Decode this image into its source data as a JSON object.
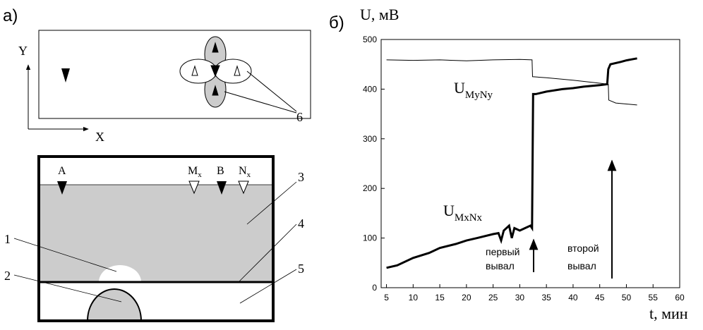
{
  "panel_a": {
    "label": "а)",
    "axis_y": "Y",
    "axis_x": "X",
    "marker_6": "6",
    "electrodes": {
      "a": "A",
      "m": "M",
      "m_sub": "x",
      "b": "B",
      "n": "N",
      "n_sub": "x"
    },
    "layers": [
      "1",
      "2",
      "3",
      "4",
      "5"
    ]
  },
  "chart_data": {
    "type": "line",
    "panel_label": "б)",
    "y_label": "U, мВ",
    "x_label": "t, мин",
    "xlim": [
      4,
      60
    ],
    "xticks": [
      5,
      10,
      15,
      20,
      25,
      30,
      35,
      40,
      45,
      50,
      55,
      60
    ],
    "ylim": [
      0,
      500
    ],
    "yticks": [
      0,
      100,
      200,
      300,
      400,
      500
    ],
    "series": [
      {
        "name": "U",
        "name_sub": "MyNy",
        "color": "#000",
        "x": [
          5,
          10,
          15,
          20,
          25,
          30,
          32.3,
          32.4,
          35,
          40,
          45,
          46.6,
          46.7,
          48,
          50,
          52
        ],
        "values": [
          459,
          458,
          459,
          457,
          459,
          460,
          459,
          425,
          423,
          418,
          412,
          410,
          378,
          372,
          370,
          368
        ]
      },
      {
        "name": "U",
        "name_sub": "MxNx",
        "color": "#000",
        "x": [
          5,
          7,
          10,
          13,
          15,
          18,
          20,
          22,
          25,
          26,
          26.5,
          27,
          28,
          28.5,
          29,
          30,
          31,
          32,
          32.3,
          32.5,
          33,
          35,
          38,
          40,
          42,
          45,
          46.4,
          46.6,
          47,
          49,
          50,
          51,
          52
        ],
        "values": [
          40,
          45,
          60,
          70,
          80,
          88,
          95,
          100,
          108,
          110,
          95,
          115,
          125,
          100,
          120,
          115,
          120,
          125,
          120,
          390,
          390,
          395,
          400,
          402,
          405,
          408,
          410,
          440,
          450,
          455,
          458,
          460,
          462
        ]
      }
    ],
    "annotations": [
      "первый",
      "вывал",
      "второй",
      "вывал"
    ]
  }
}
